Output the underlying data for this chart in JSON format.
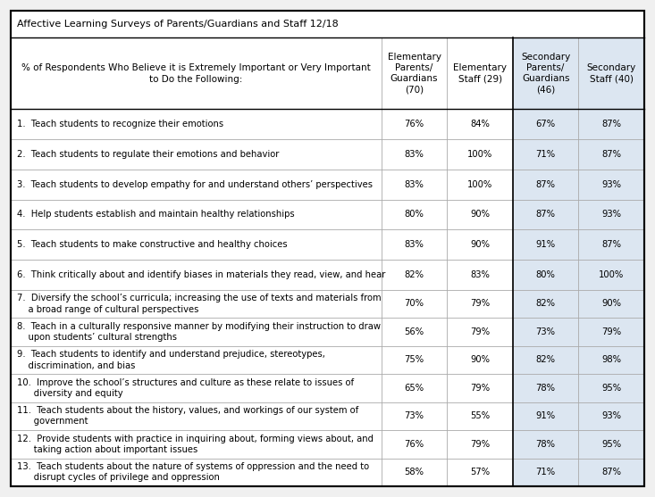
{
  "title": "Affective Learning Surveys of Parents/Guardians and Staff 12/18",
  "header_label_line1": "% of Respondents Who Believe it is Extremely Important or Very Important",
  "header_label_line2": "to Do the Following:",
  "col_headers": [
    "Elementary\nParents/\nGuardians\n(70)",
    "Elementary\nStaff (29)",
    "Secondary\nParents/\nGuardians\n(46)",
    "Secondary\nStaff (40)"
  ],
  "rows": [
    {
      "label": "1.  Teach students to recognize their emotions",
      "values": [
        "76%",
        "84%",
        "67%",
        "87%"
      ],
      "two_line": false
    },
    {
      "label": "2.  Teach students to regulate their emotions and behavior",
      "values": [
        "83%",
        "100%",
        "71%",
        "87%"
      ],
      "two_line": false
    },
    {
      "label": "3.  Teach students to develop empathy for and understand others’ perspectives",
      "values": [
        "83%",
        "100%",
        "87%",
        "93%"
      ],
      "two_line": false
    },
    {
      "label": "4.  Help students establish and maintain healthy relationships",
      "values": [
        "80%",
        "90%",
        "87%",
        "93%"
      ],
      "two_line": false
    },
    {
      "label": "5.  Teach students to make constructive and healthy choices",
      "values": [
        "83%",
        "90%",
        "91%",
        "87%"
      ],
      "two_line": false
    },
    {
      "label": "6.  Think critically about and identify biases in materials they read, view, and hear",
      "values": [
        "82%",
        "83%",
        "80%",
        "100%"
      ],
      "two_line": false
    },
    {
      "label": "7.  Diversify the school’s curricula; increasing the use of texts and materials from\n    a broad range of cultural perspectives",
      "values": [
        "70%",
        "79%",
        "82%",
        "90%"
      ],
      "two_line": true
    },
    {
      "label": "8.  Teach in a culturally responsive manner by modifying their instruction to draw\n    upon students’ cultural strengths",
      "values": [
        "56%",
        "79%",
        "73%",
        "79%"
      ],
      "two_line": true
    },
    {
      "label": "9.  Teach students to identify and understand prejudice, stereotypes,\n    discrimination, and bias",
      "values": [
        "75%",
        "90%",
        "82%",
        "98%"
      ],
      "two_line": true
    },
    {
      "label": "10.  Improve the school’s structures and culture as these relate to issues of\n      diversity and equity",
      "values": [
        "65%",
        "79%",
        "78%",
        "95%"
      ],
      "two_line": true
    },
    {
      "label": "11.  Teach students about the history, values, and workings of our system of\n      government",
      "values": [
        "73%",
        "55%",
        "91%",
        "93%"
      ],
      "two_line": true
    },
    {
      "label": "12.  Provide students with practice in inquiring about, forming views about, and\n      taking action about important issues",
      "values": [
        "76%",
        "79%",
        "78%",
        "95%"
      ],
      "two_line": true
    },
    {
      "label": "13.  Teach students about the nature of systems of oppression and the need to\n      disrupt cycles of privilege and oppression",
      "values": [
        "58%",
        "57%",
        "71%",
        "87%"
      ],
      "two_line": true
    }
  ],
  "bg_color": "#f0f0f0",
  "table_bg": "#ffffff",
  "secondary_shade": "#dce6f1",
  "border_color": "#000000",
  "grid_color": "#aaaaaa",
  "text_color": "#000000",
  "font_size": 7.2,
  "header_font_size": 7.5,
  "title_font_size": 8.0
}
